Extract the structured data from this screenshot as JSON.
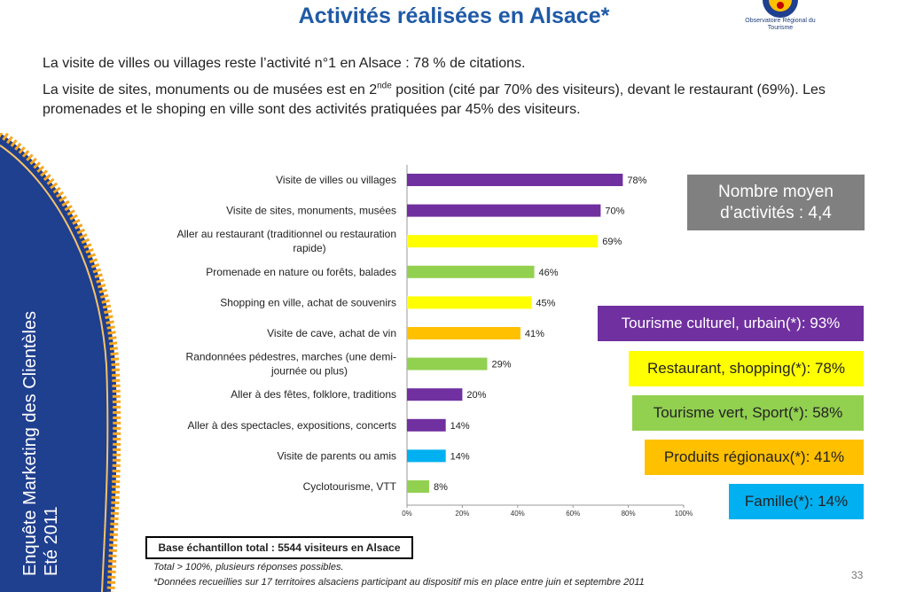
{
  "header": {
    "title": "Activités réalisées en Alsace*",
    "logo_text": "Observatoire Régional du Tourisme"
  },
  "intro": {
    "line1": "La visite de villes ou villages reste l’activité n°1 en Alsace : 78 % de citations.",
    "line2_pre": "La visite de sites, monuments ou de musées est en 2",
    "line2_sup": "nde",
    "line2_post": " position (cité par 70% des visiteurs), devant le restaurant (69%). Les promenades et le shoping en ville sont des activités pratiquées par 45% des visiteurs."
  },
  "sidebar": {
    "line1": "Enquête Marketing des Clientèles",
    "line2": "Eté 2011"
  },
  "colors": {
    "purple": "#7030a0",
    "yellow": "#ffff00",
    "green": "#92d050",
    "orange": "#ffc000",
    "blue": "#00b0f0",
    "navy": "#1f3f8f",
    "gray": "#808080"
  },
  "chart_data": {
    "type": "bar",
    "orientation": "horizontal",
    "categories": [
      "Visite de villes ou villages",
      "Visite de sites, monuments, musées",
      "Aller au restaurant (traditionnel ou restauration rapide)",
      "Promenade en nature ou forêts, balades",
      "Shopping en ville, achat de souvenirs",
      "Visite de cave, achat de vin",
      "Randonnées pédestres, marches (une demi-journée ou plus)",
      "Aller à des fêtes, folklore, traditions",
      "Aller à des spectacles, expositions, concerts",
      "Visite de parents ou amis",
      "Cyclotourisme, VTT"
    ],
    "category_lines": [
      [
        "Visite de villes ou villages"
      ],
      [
        "Visite de sites, monuments, musées"
      ],
      [
        "Aller au restaurant (traditionnel ou restauration",
        "rapide)"
      ],
      [
        "Promenade en nature ou forêts, balades"
      ],
      [
        "Shopping en ville, achat de souvenirs"
      ],
      [
        "Visite de cave, achat de vin"
      ],
      [
        "Randonnées pédestres, marches (une demi-",
        "journée ou plus)"
      ],
      [
        "Aller à des fêtes, folklore, traditions"
      ],
      [
        "Aller à des spectacles, expositions, concerts"
      ],
      [
        "Visite de parents ou amis"
      ],
      [
        "Cyclotourisme, VTT"
      ]
    ],
    "values": [
      78,
      70,
      69,
      46,
      45,
      41,
      29,
      20,
      14,
      14,
      8
    ],
    "value_labels": [
      "78%",
      "70%",
      "69%",
      "46%",
      "45%",
      "41%",
      "29%",
      "20%",
      "14%",
      "14%",
      "8%"
    ],
    "bar_colors": [
      "#7030a0",
      "#7030a0",
      "#ffff00",
      "#92d050",
      "#ffff00",
      "#ffc000",
      "#92d050",
      "#7030a0",
      "#7030a0",
      "#00b0f0",
      "#92d050"
    ],
    "xlim": [
      0,
      100
    ],
    "xticks": [
      0,
      20,
      40,
      60,
      80,
      100
    ],
    "xtick_labels": [
      "0%",
      "20%",
      "40%",
      "60%",
      "80%",
      "100%"
    ],
    "grid": false
  },
  "summary": {
    "average_line1": "Nombre moyen",
    "average_line2": "d’activités : 4,4",
    "groups": [
      {
        "pre": "Tourisme culturel, urbain ",
        "mark": "(*)",
        "post": " : 93%",
        "bg": "#7030a0",
        "fg": "#ffffff"
      },
      {
        "pre": "Restaurant, shopping",
        "mark": "(*)",
        "post": " : 78%",
        "bg": "#ffff00",
        "fg": "#222222"
      },
      {
        "pre": "Tourisme vert, Sport ",
        "mark": "(*)",
        "post": " : 58%",
        "bg": "#92d050",
        "fg": "#222222"
      },
      {
        "pre": "Produits régionaux",
        "mark": "(*)",
        "post": " : 41%",
        "bg": "#ffc000",
        "fg": "#222222"
      },
      {
        "pre": "Famille",
        "mark": "(*)",
        "post": " : 14%",
        "bg": "#00b0f0",
        "fg": "#222222"
      }
    ]
  },
  "footer": {
    "base": "Base échantillon total : 5544 visiteurs en Alsace",
    "note1": "Total > 100%, plusieurs réponses possibles.",
    "note2": "*Données recueillies sur 17 territoires alsaciens participant au dispositif mis en place entre juin et septembre 2011",
    "page": "33"
  }
}
